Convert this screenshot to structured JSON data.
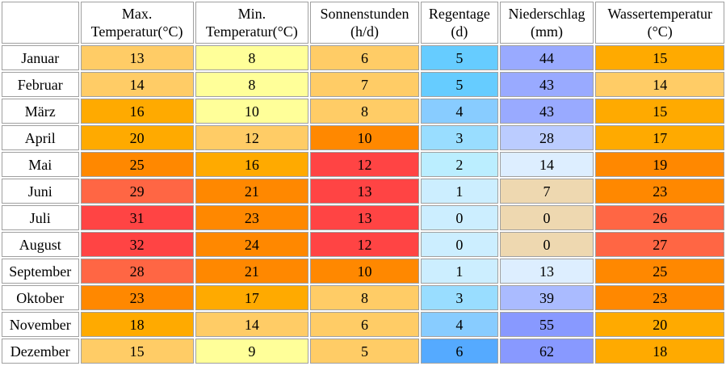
{
  "columns": [
    {
      "line1": "Max.",
      "line2": "Temperatur(°C)"
    },
    {
      "line1": "Min.",
      "line2": "Temperatur(°C)"
    },
    {
      "line1": "Sonnenstunden",
      "line2": "(h/d)"
    },
    {
      "line1": "Regentage",
      "line2": "(d)"
    },
    {
      "line1": "Niederschlag",
      "line2": "(mm)"
    },
    {
      "line1": "Wassertemperatur",
      "line2": "(°C)"
    }
  ],
  "rows": [
    {
      "month": "Januar",
      "values": [
        "13",
        "8",
        "6",
        "5",
        "44",
        "15"
      ],
      "colors": [
        "#ffcc66",
        "#ffff99",
        "#ffcc66",
        "#66ccff",
        "#99aaff",
        "#ffaa00"
      ]
    },
    {
      "month": "Februar",
      "values": [
        "14",
        "8",
        "7",
        "5",
        "43",
        "14"
      ],
      "colors": [
        "#ffcc66",
        "#ffff99",
        "#ffcc66",
        "#66ccff",
        "#99aaff",
        "#ffcc66"
      ]
    },
    {
      "month": "März",
      "values": [
        "16",
        "10",
        "8",
        "4",
        "43",
        "15"
      ],
      "colors": [
        "#ffaa00",
        "#ffff99",
        "#ffcc66",
        "#88ccff",
        "#99aaff",
        "#ffaa00"
      ]
    },
    {
      "month": "April",
      "values": [
        "20",
        "12",
        "10",
        "3",
        "28",
        "17"
      ],
      "colors": [
        "#ffaa00",
        "#ffcc66",
        "#ff8800",
        "#99ddff",
        "#bbccff",
        "#ffaa00"
      ]
    },
    {
      "month": "Mai",
      "values": [
        "25",
        "16",
        "12",
        "2",
        "14",
        "19"
      ],
      "colors": [
        "#ff8800",
        "#ffaa00",
        "#ff4444",
        "#bbeeff",
        "#ddeeff",
        "#ff8800"
      ]
    },
    {
      "month": "Juni",
      "values": [
        "29",
        "21",
        "13",
        "1",
        "7",
        "23"
      ],
      "colors": [
        "#ff6644",
        "#ff8800",
        "#ff4444",
        "#cceeff",
        "#eed8b0",
        "#ff8800"
      ]
    },
    {
      "month": "Juli",
      "values": [
        "31",
        "23",
        "13",
        "0",
        "0",
        "26"
      ],
      "colors": [
        "#ff4444",
        "#ff8800",
        "#ff4444",
        "#cceeff",
        "#eed8b0",
        "#ff6644"
      ]
    },
    {
      "month": "August",
      "values": [
        "32",
        "24",
        "12",
        "0",
        "0",
        "27"
      ],
      "colors": [
        "#ff4444",
        "#ff8800",
        "#ff4444",
        "#cceeff",
        "#eed8b0",
        "#ff6644"
      ]
    },
    {
      "month": "September",
      "values": [
        "28",
        "21",
        "10",
        "1",
        "13",
        "25"
      ],
      "colors": [
        "#ff6644",
        "#ff8800",
        "#ff8800",
        "#cceeff",
        "#ddeeff",
        "#ff8800"
      ]
    },
    {
      "month": "Oktober",
      "values": [
        "23",
        "17",
        "8",
        "3",
        "39",
        "23"
      ],
      "colors": [
        "#ff8800",
        "#ffaa00",
        "#ffcc66",
        "#99ddff",
        "#aabbff",
        "#ff8800"
      ]
    },
    {
      "month": "November",
      "values": [
        "18",
        "14",
        "6",
        "4",
        "55",
        "20"
      ],
      "colors": [
        "#ffaa00",
        "#ffcc66",
        "#ffcc66",
        "#88ccff",
        "#8899ff",
        "#ffaa00"
      ]
    },
    {
      "month": "Dezember",
      "values": [
        "15",
        "9",
        "5",
        "6",
        "62",
        "18"
      ],
      "colors": [
        "#ffcc66",
        "#ffff99",
        "#ffcc66",
        "#55aaff",
        "#8899ff",
        "#ffaa00"
      ]
    }
  ]
}
